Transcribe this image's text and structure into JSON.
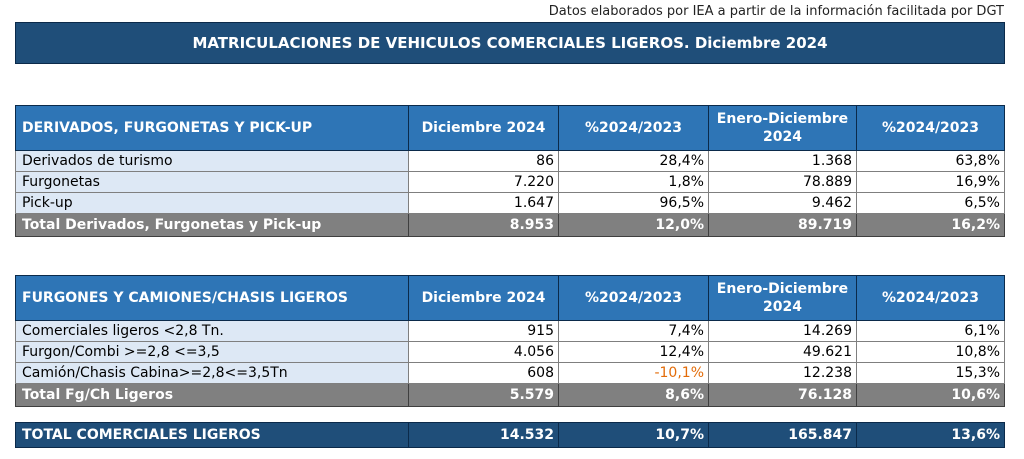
{
  "source_note": "Datos elaborados por IEA a partir de la información facilitada por DGT",
  "title": "MATRICULACIONES DE VEHICULOS COMERCIALES LIGEROS. Diciembre 2024",
  "table1": {
    "headers": [
      "DERIVADOS, FURGONETAS Y PICK-UP",
      "Diciembre 2024",
      "%2024/2023",
      "Enero-Diciembre 2024",
      "%2024/2023"
    ],
    "rows": [
      {
        "label": "Derivados de turismo",
        "dic": "86",
        "pct1": "28,4%",
        "ytd": "1.368",
        "pct2": "63,8%"
      },
      {
        "label": "Furgonetas",
        "dic": "7.220",
        "pct1": "1,8%",
        "ytd": "78.889",
        "pct2": "16,9%"
      },
      {
        "label": "Pick-up",
        "dic": "1.647",
        "pct1": "96,5%",
        "ytd": "9.462",
        "pct2": "6,5%"
      }
    ],
    "total": {
      "label": "Total Derivados, Furgonetas y Pick-up",
      "dic": "8.953",
      "pct1": "12,0%",
      "ytd": "89.719",
      "pct2": "16,2%"
    }
  },
  "table2": {
    "headers": [
      "FURGONES Y CAMIONES/CHASIS LIGEROS",
      "Diciembre 2024",
      "%2024/2023",
      "Enero-Diciembre 2024",
      "%2024/2023"
    ],
    "rows": [
      {
        "label": "Comerciales ligeros <2,8 Tn.",
        "dic": "915",
        "pct1": "7,4%",
        "ytd": "14.269",
        "pct2": "6,1%"
      },
      {
        "label": "Furgon/Combi >=2,8 <=3,5",
        "dic": "4.056",
        "pct1": "12,4%",
        "ytd": "49.621",
        "pct2": "10,8%"
      },
      {
        "label": "Camión/Chasis Cabina>=2,8<=3,5Tn",
        "dic": "608",
        "pct1": "-10,1%",
        "ytd": "12.238",
        "pct2": "15,3%"
      }
    ],
    "total": {
      "label": "Total Fg/Ch Ligeros",
      "dic": "5.579",
      "pct1": "8,6%",
      "ytd": "76.128",
      "pct2": "10,6%"
    }
  },
  "grand_total": {
    "label": "TOTAL COMERCIALES LIGEROS",
    "dic": "14.532",
    "pct1": "10,7%",
    "ytd": "165.847",
    "pct2": "13,6%"
  },
  "colors": {
    "banner": "#1f4e79",
    "header": "#2e75b6",
    "label_fill": "#dde8f5",
    "total_fill": "#808080",
    "negative": "#e36c09"
  }
}
